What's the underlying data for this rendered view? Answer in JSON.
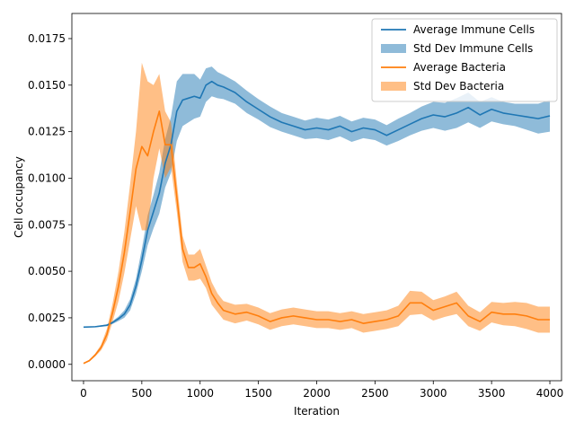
{
  "chart_data": {
    "type": "line",
    "title": "",
    "xlabel": "Iteration",
    "ylabel": "Cell occupancy",
    "xlim": [
      -100,
      4100
    ],
    "ylim": [
      -0.00088,
      0.01885
    ],
    "x_ticks": [
      0,
      500,
      1000,
      1500,
      2000,
      2500,
      3000,
      3500,
      4000
    ],
    "x_tick_labels": [
      "0",
      "500",
      "1000",
      "1500",
      "2000",
      "2500",
      "3000",
      "3500",
      "4000"
    ],
    "y_ticks": [
      0.0,
      0.0025,
      0.005,
      0.0075,
      0.01,
      0.0125,
      0.015,
      0.0175
    ],
    "y_tick_labels": [
      "0.0000",
      "0.0025",
      "0.0050",
      "0.0075",
      "0.0100",
      "0.0125",
      "0.0150",
      "0.0175"
    ],
    "grid": false,
    "legend_position": "top-right",
    "legend": [
      {
        "label": "Average Immune Cells",
        "kind": "line",
        "color": "#1f77b4"
      },
      {
        "label": "Std Dev Immune Cells",
        "kind": "band",
        "color": "#1f77b4"
      },
      {
        "label": "Average Bacteria",
        "kind": "line",
        "color": "#ff7f0e"
      },
      {
        "label": "Std Dev Bacteria",
        "kind": "band",
        "color": "#ff7f0e"
      }
    ],
    "series": [
      {
        "name": "Average Immune Cells",
        "color": "#1f77b4",
        "x": [
          0,
          100,
          200,
          250,
          300,
          350,
          400,
          450,
          500,
          550,
          600,
          650,
          700,
          750,
          800,
          850,
          900,
          950,
          1000,
          1050,
          1100,
          1150,
          1200,
          1300,
          1400,
          1500,
          1600,
          1700,
          1800,
          1900,
          2000,
          2100,
          2200,
          2300,
          2400,
          2500,
          2600,
          2700,
          2800,
          2900,
          3000,
          3100,
          3200,
          3300,
          3400,
          3500,
          3600,
          3700,
          3800,
          3900,
          4000
        ],
        "mean": [
          0.002,
          0.00202,
          0.0021,
          0.00225,
          0.00245,
          0.0027,
          0.0032,
          0.0042,
          0.0056,
          0.0072,
          0.0082,
          0.0092,
          0.0108,
          0.0118,
          0.0136,
          0.0142,
          0.0143,
          0.0144,
          0.0143,
          0.015,
          0.0152,
          0.015,
          0.0149,
          0.0146,
          0.0141,
          0.0137,
          0.0133,
          0.013,
          0.0128,
          0.0126,
          0.0127,
          0.0126,
          0.0128,
          0.0125,
          0.0127,
          0.0126,
          0.0123,
          0.0126,
          0.0129,
          0.0132,
          0.0134,
          0.0133,
          0.0135,
          0.0138,
          0.0134,
          0.0137,
          0.0135,
          0.0134,
          0.0133,
          0.0132,
          0.01335
        ],
        "std": [
          2e-05,
          3e-05,
          5e-05,
          8e-05,
          0.00012,
          0.0002,
          0.0003,
          0.0004,
          0.0006,
          0.0008,
          0.0009,
          0.0011,
          0.0013,
          0.0015,
          0.0016,
          0.0014,
          0.0013,
          0.0012,
          0.001,
          0.0009,
          0.0008,
          0.0007,
          0.00065,
          0.0006,
          0.0006,
          0.00055,
          0.00055,
          0.0005,
          0.0005,
          0.0005,
          0.00055,
          0.00055,
          0.00055,
          0.00055,
          0.00055,
          0.00055,
          0.00055,
          0.0006,
          0.0006,
          0.00065,
          0.0007,
          0.00075,
          0.0008,
          0.0008,
          0.0007,
          0.00065,
          0.0006,
          0.0006,
          0.0007,
          0.0008,
          0.00085
        ]
      },
      {
        "name": "Average Bacteria",
        "color": "#ff7f0e",
        "x": [
          0,
          50,
          100,
          150,
          200,
          250,
          300,
          350,
          400,
          450,
          500,
          550,
          600,
          650,
          700,
          750,
          800,
          850,
          900,
          950,
          1000,
          1050,
          1100,
          1150,
          1200,
          1300,
          1400,
          1500,
          1600,
          1700,
          1800,
          1900,
          2000,
          2100,
          2200,
          2300,
          2400,
          2500,
          2600,
          2700,
          2800,
          2900,
          3000,
          3100,
          3200,
          3300,
          3400,
          3500,
          3600,
          3700,
          3800,
          3900,
          4000
        ],
        "mean": [
          5e-05,
          0.0002,
          0.0005,
          0.0009,
          0.0016,
          0.0028,
          0.0042,
          0.006,
          0.0082,
          0.0105,
          0.0117,
          0.0112,
          0.0125,
          0.0136,
          0.0118,
          0.0118,
          0.009,
          0.0062,
          0.0052,
          0.0052,
          0.0054,
          0.0047,
          0.0038,
          0.0033,
          0.0029,
          0.0027,
          0.0028,
          0.0026,
          0.0023,
          0.0025,
          0.0026,
          0.0025,
          0.0024,
          0.0024,
          0.0023,
          0.0024,
          0.0022,
          0.0023,
          0.0024,
          0.0026,
          0.0033,
          0.0033,
          0.0029,
          0.0031,
          0.0033,
          0.0026,
          0.0023,
          0.0028,
          0.0027,
          0.0027,
          0.0026,
          0.0024,
          0.0024
        ],
        "std": [
          2e-05,
          5e-05,
          8e-05,
          0.00015,
          0.0003,
          0.0005,
          0.0008,
          0.0011,
          0.0015,
          0.002,
          0.0045,
          0.004,
          0.0025,
          0.002,
          0.0018,
          0.0012,
          0.0008,
          0.0007,
          0.0007,
          0.0007,
          0.0008,
          0.0006,
          0.0006,
          0.0005,
          0.0005,
          0.0005,
          0.00045,
          0.00045,
          0.00045,
          0.00045,
          0.00045,
          0.00045,
          0.00045,
          0.00045,
          0.00045,
          0.00045,
          0.0005,
          0.0005,
          0.0005,
          0.00055,
          0.00065,
          0.0006,
          0.00055,
          0.00055,
          0.0006,
          0.00055,
          0.0005,
          0.00055,
          0.0006,
          0.00065,
          0.0007,
          0.0007,
          0.0007
        ]
      }
    ]
  }
}
